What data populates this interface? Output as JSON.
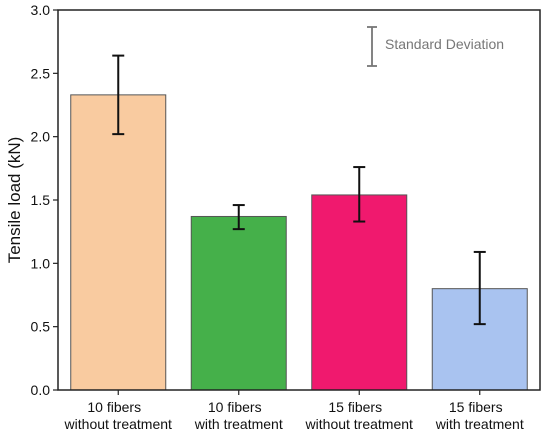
{
  "chart_data": {
    "type": "bar",
    "ylabel": "Tensile load (kN)",
    "xlabel": "",
    "ylim": [
      0,
      3.0
    ],
    "yticks": [
      "0.0",
      "0.5",
      "1.0",
      "1.5",
      "2.0",
      "2.5",
      "3.0"
    ],
    "categories": [
      [
        "10 fibers",
        "without treatment"
      ],
      [
        "10 fibers",
        "with treatment"
      ],
      [
        "15 fibers",
        "without treatment"
      ],
      [
        "15 fibers",
        "with treatment"
      ]
    ],
    "values": [
      2.33,
      1.37,
      1.54,
      0.8
    ],
    "error_low": [
      2.02,
      1.27,
      1.33,
      0.52
    ],
    "error_high": [
      2.64,
      1.46,
      1.76,
      1.09
    ],
    "colors": [
      "#f9cba0",
      "#45b04a",
      "#f0196e",
      "#a9c3f0"
    ],
    "legend": {
      "label": "Standard Deviation",
      "position": "top-right"
    },
    "grid": false
  }
}
